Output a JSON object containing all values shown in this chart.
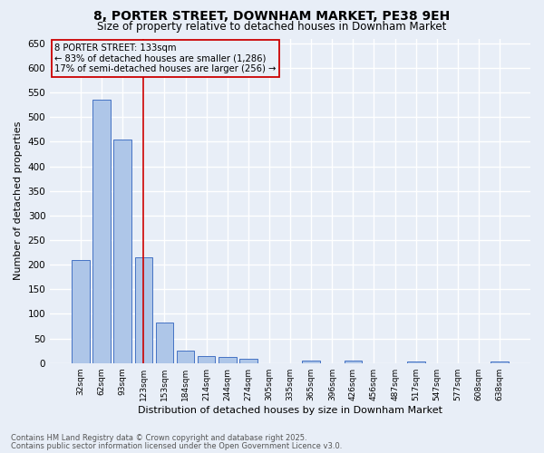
{
  "title1": "8, PORTER STREET, DOWNHAM MARKET, PE38 9EH",
  "title2": "Size of property relative to detached houses in Downham Market",
  "xlabel": "Distribution of detached houses by size in Downham Market",
  "ylabel": "Number of detached properties",
  "categories": [
    "32sqm",
    "62sqm",
    "93sqm",
    "123sqm",
    "153sqm",
    "184sqm",
    "214sqm",
    "244sqm",
    "274sqm",
    "305sqm",
    "335sqm",
    "365sqm",
    "396sqm",
    "426sqm",
    "456sqm",
    "487sqm",
    "517sqm",
    "547sqm",
    "577sqm",
    "608sqm",
    "638sqm"
  ],
  "values": [
    210,
    535,
    455,
    215,
    82,
    25,
    15,
    12,
    8,
    0,
    0,
    5,
    0,
    5,
    0,
    0,
    3,
    0,
    0,
    0,
    3
  ],
  "bar_color": "#aec6e8",
  "bar_edge_color": "#4472c4",
  "background_color": "#e8eef7",
  "grid_color": "#ffffff",
  "annotation_line1": "8 PORTER STREET: 133sqm",
  "annotation_line2": "← 83% of detached houses are smaller (1,286)",
  "annotation_line3": "17% of semi-detached houses are larger (256) →",
  "vline_x": 3,
  "vline_color": "#cc0000",
  "footer1": "Contains HM Land Registry data © Crown copyright and database right 2025.",
  "footer2": "Contains public sector information licensed under the Open Government Licence v3.0.",
  "ylim": [
    0,
    660
  ],
  "yticks": [
    0,
    50,
    100,
    150,
    200,
    250,
    300,
    350,
    400,
    450,
    500,
    550,
    600,
    650
  ]
}
